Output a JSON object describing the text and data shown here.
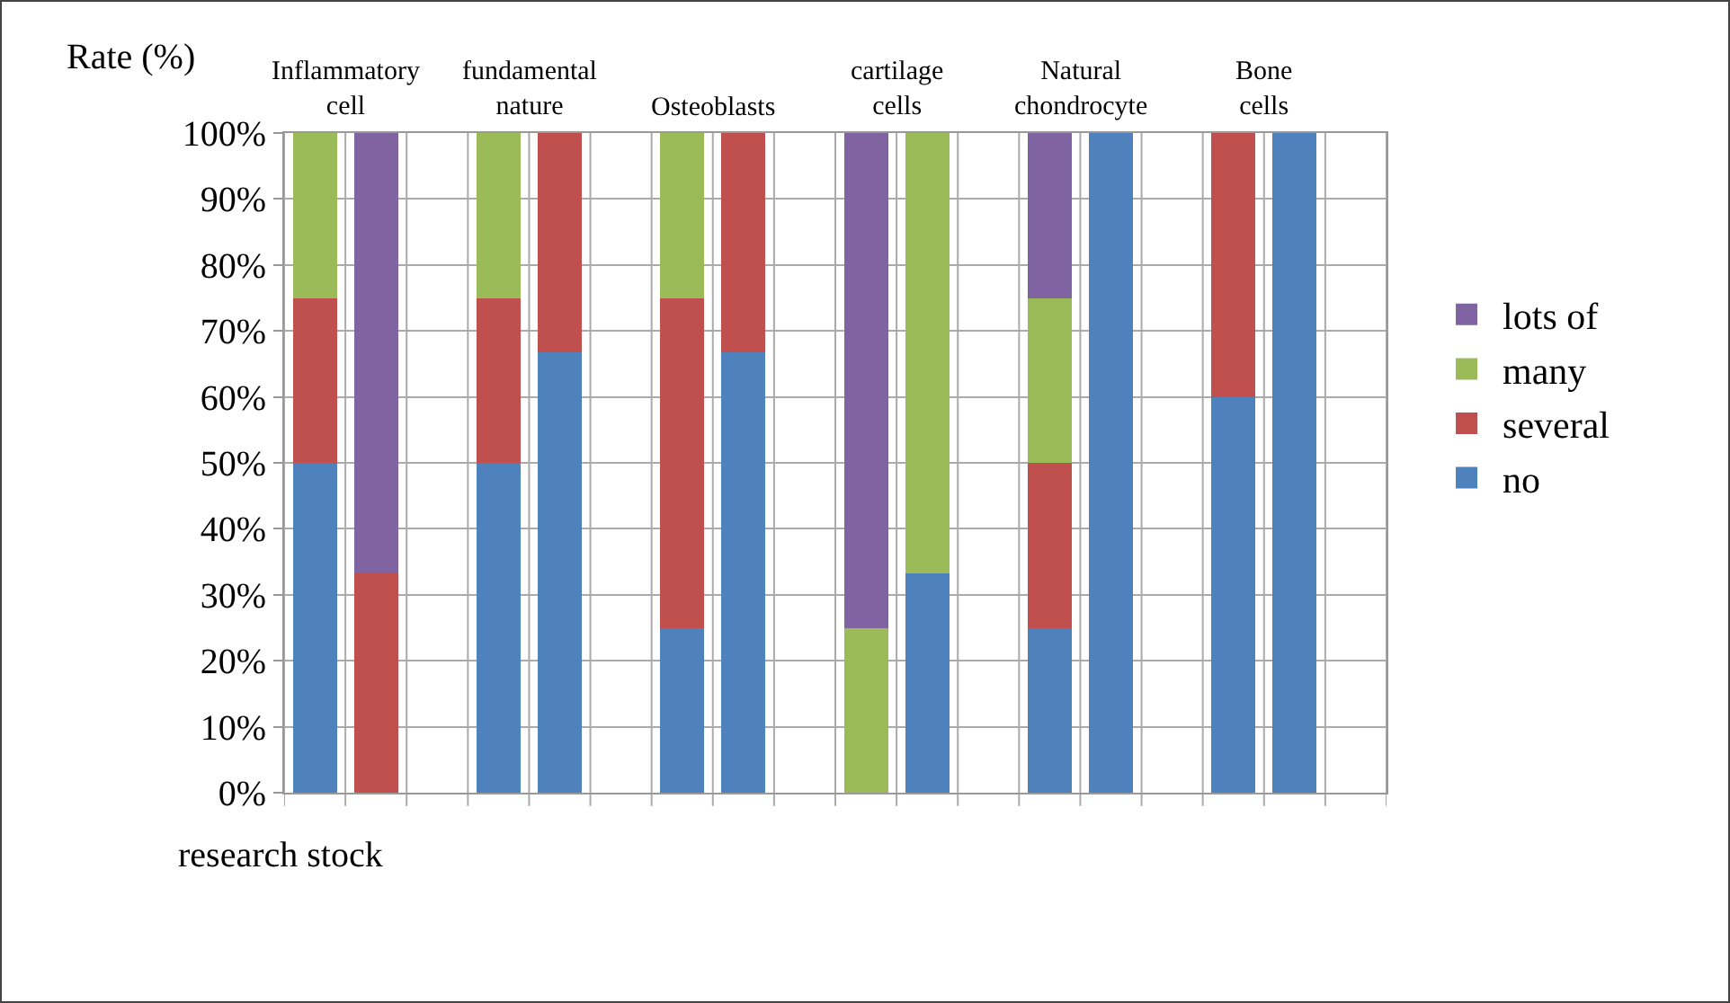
{
  "chart_data": {
    "type": "bar",
    "stacked": true,
    "ylabel": "Rate (%)",
    "xlabel": "research stock",
    "categories": [
      null,
      null,
      null,
      null,
      null,
      null,
      null,
      null,
      null,
      null,
      null,
      null,
      null,
      null,
      null,
      null,
      null,
      null
    ],
    "annotations": [
      "Inflammatory\ncell",
      "fundamental\nnature",
      "Osteoblasts",
      "cartilage\ncells",
      "Natural\nchondrocyte",
      "Bone\ncells"
    ],
    "series": [
      {
        "name": "no",
        "color": "#4f81bd",
        "values": [
          50,
          0,
          null,
          50,
          66.7,
          null,
          25,
          66.7,
          null,
          0,
          33.3,
          null,
          25,
          100,
          null,
          60,
          100,
          null
        ]
      },
      {
        "name": "several",
        "color": "#c0504d",
        "values": [
          25,
          33.3,
          null,
          25,
          33.3,
          null,
          50,
          33.3,
          null,
          0,
          0,
          null,
          25,
          0,
          null,
          40,
          0,
          null
        ]
      },
      {
        "name": "many",
        "color": "#9bbb59",
        "values": [
          25,
          0,
          null,
          25,
          0,
          null,
          25,
          0,
          null,
          25,
          66.7,
          null,
          25,
          0,
          null,
          0,
          0,
          null
        ]
      },
      {
        "name": "lots of",
        "color": "#8064a2",
        "values": [
          0,
          66.7,
          null,
          0,
          0,
          null,
          0,
          0,
          null,
          75,
          0,
          null,
          25,
          0,
          null,
          0,
          0,
          null
        ]
      }
    ],
    "ylim": [
      0,
      100
    ],
    "yticks": [
      {
        "value": 0,
        "label": "0%"
      },
      {
        "value": 10,
        "label": "10%"
      },
      {
        "value": 20,
        "label": "20%"
      },
      {
        "value": 30,
        "label": "30%"
      },
      {
        "value": 40,
        "label": "40%"
      },
      {
        "value": 50,
        "label": "50%"
      },
      {
        "value": 60,
        "label": "60%"
      },
      {
        "value": 70,
        "label": "70%"
      },
      {
        "value": 80,
        "label": "80%"
      },
      {
        "value": 90,
        "label": "90%"
      },
      {
        "value": 100,
        "label": "100%"
      }
    ],
    "grid": true,
    "legend": "right"
  }
}
